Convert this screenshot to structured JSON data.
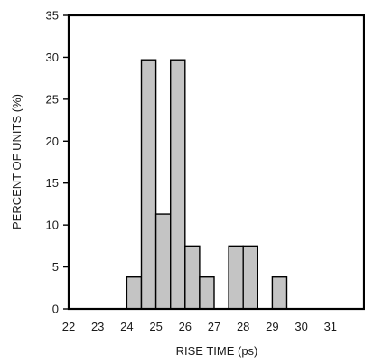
{
  "chart_data": {
    "type": "bar",
    "title": "",
    "xlabel": "RISE TIME (ps)",
    "ylabel": "PERCENT OF UNITS (%)",
    "xlim": [
      22,
      32
    ],
    "ylim": [
      0,
      35
    ],
    "x_ticks": [
      22,
      23,
      24,
      25,
      26,
      27,
      28,
      29,
      30,
      31
    ],
    "y_ticks": [
      0,
      5,
      10,
      15,
      20,
      25,
      30,
      35
    ],
    "grid": false,
    "bin_width": 0.5,
    "bins": [
      {
        "x": 24.0,
        "value": 3.8
      },
      {
        "x": 24.5,
        "value": 29.7
      },
      {
        "x": 25.0,
        "value": 11.3
      },
      {
        "x": 25.5,
        "value": 29.7
      },
      {
        "x": 26.0,
        "value": 7.5
      },
      {
        "x": 26.5,
        "value": 3.8
      },
      {
        "x": 27.5,
        "value": 7.5
      },
      {
        "x": 28.0,
        "value": 7.5
      },
      {
        "x": 29.0,
        "value": 3.8
      }
    ],
    "colors": {
      "bar_fill": "#c4c4c4",
      "bar_edge": "#000000"
    }
  }
}
